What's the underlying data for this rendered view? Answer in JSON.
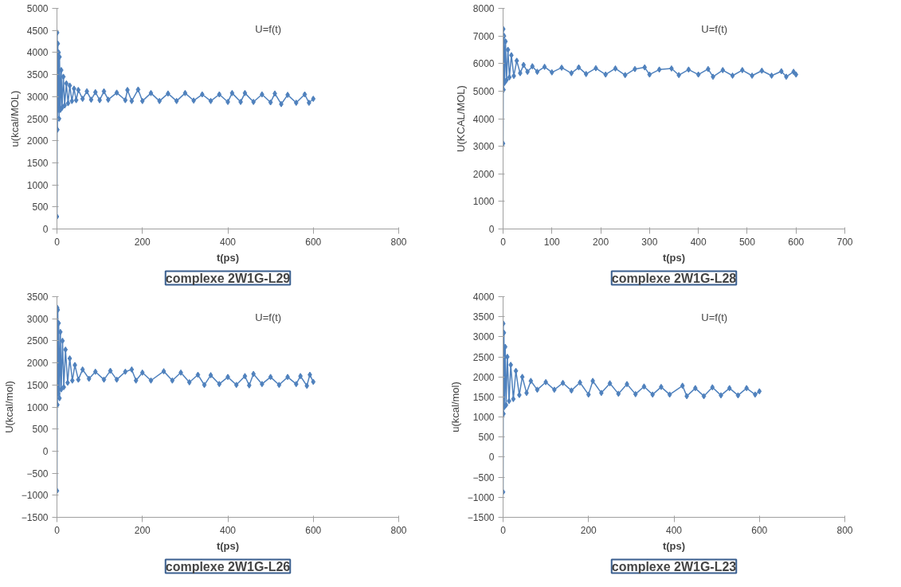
{
  "chart_data": [
    {
      "type": "line",
      "title": "complexe 2W1G-L29",
      "xlabel": "t(ps)",
      "ylabel": "u(kcal/MOL)",
      "annotations": [
        "U=f(t)"
      ],
      "marker": "diamond",
      "grid": false,
      "xlim": [
        0,
        800
      ],
      "xticks": [
        0,
        200,
        400,
        600,
        800
      ],
      "ylim": [
        0,
        5000
      ],
      "yticks": [
        0,
        500,
        1000,
        1500,
        2000,
        2500,
        3000,
        3500,
        4000,
        4500,
        5000
      ],
      "series": [
        {
          "color": "#4f81bd",
          "x": [
            0,
            0.5,
            1,
            2,
            3,
            4,
            5,
            6,
            8,
            10,
            12,
            15,
            18,
            22,
            26,
            30,
            35,
            40,
            45,
            50,
            60,
            70,
            80,
            90,
            100,
            110,
            120,
            140,
            160,
            165,
            175,
            190,
            200,
            220,
            240,
            260,
            280,
            300,
            320,
            340,
            360,
            380,
            400,
            410,
            430,
            440,
            460,
            480,
            500,
            510,
            525,
            540,
            560,
            580,
            590,
            600
          ],
          "values": [
            280,
            4450,
            2250,
            4200,
            2700,
            4000,
            2500,
            3900,
            2700,
            3600,
            2750,
            3450,
            2800,
            3300,
            2850,
            3250,
            2900,
            3180,
            2920,
            3150,
            2950,
            3120,
            2930,
            3100,
            2920,
            3120,
            2930,
            3090,
            2920,
            3150,
            2900,
            3160,
            2900,
            3080,
            2900,
            3070,
            2900,
            3080,
            2910,
            3050,
            2900,
            3050,
            2880,
            3080,
            2880,
            3080,
            2880,
            3050,
            2870,
            3070,
            2830,
            3040,
            2860,
            3050,
            2860,
            2950
          ]
        }
      ]
    },
    {
      "type": "line",
      "title": "complexe 2W1G-L28",
      "xlabel": "t(ps)",
      "ylabel": "U(KCAL/MOL)",
      "annotations": [
        "U=f(t)"
      ],
      "marker": "diamond",
      "grid": false,
      "xlim": [
        0,
        700
      ],
      "xticks": [
        0,
        100,
        200,
        300,
        400,
        500,
        600,
        700
      ],
      "ylim": [
        0,
        8000
      ],
      "yticks": [
        0,
        1000,
        2000,
        3000,
        4000,
        5000,
        6000,
        7000,
        8000
      ],
      "series": [
        {
          "color": "#4f81bd",
          "x": [
            0,
            0.5,
            1,
            2,
            3,
            5,
            7,
            10,
            13,
            17,
            22,
            28,
            35,
            42,
            50,
            60,
            70,
            85,
            100,
            120,
            140,
            155,
            170,
            190,
            210,
            230,
            250,
            270,
            290,
            300,
            320,
            345,
            360,
            380,
            400,
            420,
            430,
            450,
            470,
            490,
            510,
            530,
            550,
            570,
            580,
            595,
            600
          ],
          "values": [
            3100,
            7250,
            5050,
            7000,
            5300,
            6800,
            5400,
            6500,
            5500,
            6300,
            5550,
            6100,
            5650,
            5950,
            5700,
            5900,
            5700,
            5880,
            5680,
            5850,
            5650,
            5860,
            5620,
            5830,
            5600,
            5820,
            5580,
            5800,
            5860,
            5600,
            5780,
            5820,
            5580,
            5780,
            5600,
            5800,
            5520,
            5760,
            5560,
            5760,
            5560,
            5740,
            5560,
            5720,
            5520,
            5700,
            5600
          ]
        }
      ]
    },
    {
      "type": "line",
      "title": "complexe 2W1G-L26",
      "xlabel": "t(ps)",
      "ylabel": "U(kcal/mol)",
      "annotations": [
        "U=f(t)"
      ],
      "marker": "diamond",
      "grid": false,
      "xlim": [
        0,
        800
      ],
      "xticks": [
        0,
        200,
        400,
        600,
        800
      ],
      "ylim": [
        -1500,
        3500
      ],
      "yticks": [
        -1500,
        -1000,
        -500,
        0,
        500,
        1000,
        1500,
        2000,
        2500,
        3000,
        3500
      ],
      "series": [
        {
          "color": "#4f81bd",
          "x": [
            0,
            0.5,
            1,
            2,
            3,
            4,
            6,
            8,
            10,
            13,
            16,
            20,
            25,
            30,
            36,
            42,
            50,
            60,
            75,
            90,
            110,
            125,
            140,
            160,
            175,
            185,
            200,
            220,
            250,
            270,
            290,
            310,
            330,
            345,
            360,
            380,
            400,
            420,
            440,
            450,
            460,
            480,
            500,
            520,
            540,
            560,
            570,
            585,
            592,
            600
          ],
          "values": [
            -900,
            3250,
            1050,
            3200,
            1300,
            2900,
            1200,
            2700,
            1400,
            2500,
            1450,
            2300,
            1550,
            2100,
            1600,
            1950,
            1620,
            1850,
            1640,
            1800,
            1620,
            1820,
            1620,
            1800,
            1850,
            1600,
            1780,
            1600,
            1810,
            1600,
            1780,
            1560,
            1730,
            1500,
            1720,
            1520,
            1680,
            1500,
            1700,
            1490,
            1750,
            1520,
            1680,
            1500,
            1680,
            1520,
            1700,
            1480,
            1730,
            1570
          ]
        }
      ]
    },
    {
      "type": "line",
      "title": "complexe 2W1G-L23",
      "xlabel": "t(ps)",
      "ylabel": "u(kcal/mol)",
      "annotations": [
        "U=f(t)"
      ],
      "marker": "diamond",
      "grid": false,
      "xlim": [
        0,
        800
      ],
      "xticks": [
        0,
        200,
        400,
        600,
        800
      ],
      "ylim": [
        -1500,
        4000
      ],
      "yticks": [
        -1500,
        -1000,
        -500,
        0,
        500,
        1000,
        1500,
        2000,
        2500,
        3000,
        3500,
        4000
      ],
      "series": [
        {
          "color": "#4f81bd",
          "x": [
            0,
            0.5,
            1,
            2,
            3,
            5,
            7,
            10,
            14,
            18,
            24,
            30,
            38,
            45,
            55,
            65,
            80,
            100,
            120,
            140,
            160,
            180,
            200,
            210,
            230,
            250,
            270,
            290,
            310,
            330,
            350,
            370,
            390,
            420,
            430,
            450,
            470,
            490,
            510,
            530,
            550,
            570,
            590,
            600
          ],
          "values": [
            -870,
            3330,
            1080,
            3100,
            1250,
            2750,
            1300,
            2500,
            1400,
            2300,
            1450,
            2150,
            1550,
            2000,
            1600,
            1900,
            1680,
            1870,
            1680,
            1850,
            1660,
            1860,
            1560,
            1900,
            1600,
            1840,
            1580,
            1820,
            1570,
            1760,
            1560,
            1750,
            1560,
            1780,
            1520,
            1720,
            1520,
            1740,
            1540,
            1720,
            1540,
            1720,
            1560,
            1640
          ]
        }
      ]
    }
  ]
}
